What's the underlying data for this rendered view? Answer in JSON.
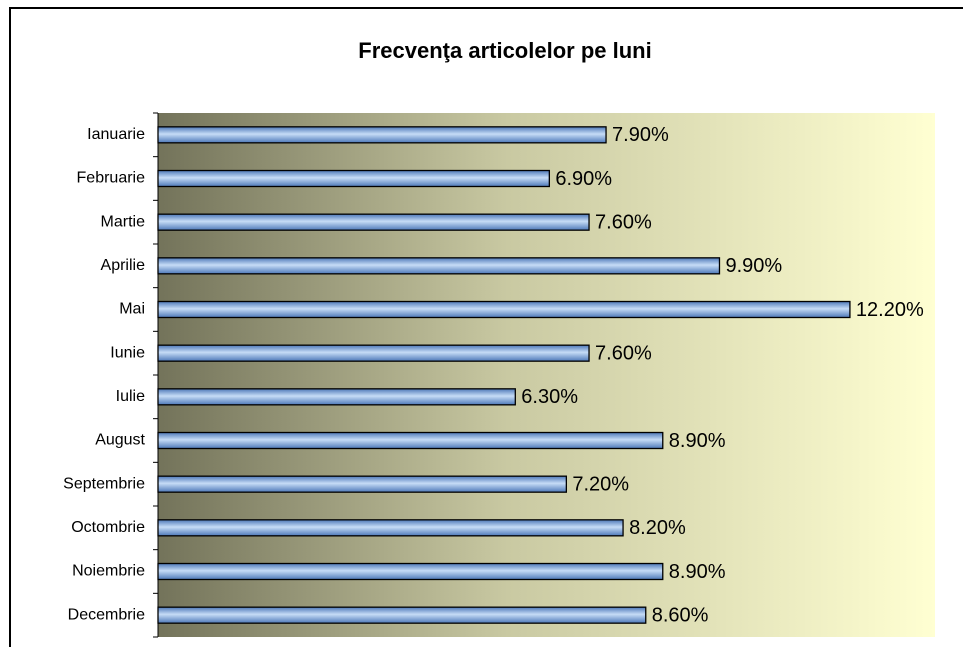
{
  "chart_data": {
    "type": "bar",
    "orientation": "horizontal",
    "title": "Frecvenţa articolelor pe luni",
    "categories": [
      "Ianuarie",
      "Februarie",
      "Martie",
      "Aprilie",
      "Mai",
      "Iunie",
      "Iulie",
      "August",
      "Septembrie",
      "Octombrie",
      "Noiembrie",
      "Decembrie"
    ],
    "values": [
      7.9,
      6.9,
      7.6,
      9.9,
      12.2,
      7.6,
      6.3,
      8.9,
      7.2,
      8.2,
      8.9,
      8.6
    ],
    "value_labels": [
      "7.90%",
      "6.90%",
      "7.60%",
      "9.90%",
      "12.20%",
      "7.60%",
      "6.30%",
      "8.90%",
      "7.20%",
      "8.20%",
      "8.90%",
      "8.60%"
    ],
    "color": "#6f9ad8",
    "xlim": [
      0,
      13.7
    ]
  }
}
